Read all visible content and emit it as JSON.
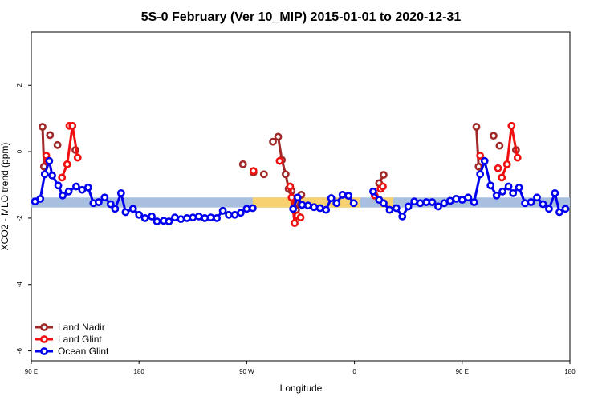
{
  "chart_data": {
    "type": "line",
    "title": "5S-0 February (Ver 10_MIP)   2015-01-01 to 2020-12-31",
    "xlabel": "Longitude",
    "ylabel": "XCO2 - MLO trend (ppm)",
    "xlim": [
      90,
      450
    ],
    "ylim": [
      -6.3,
      3.6
    ],
    "x_ticks": [
      {
        "value": 90,
        "label": "90 E"
      },
      {
        "value": 162,
        "label": "180"
      },
      {
        "value": 234,
        "label": "90 W"
      },
      {
        "value": 306,
        "label": "0"
      },
      {
        "value": 378,
        "label": "90 E"
      },
      {
        "value": 450,
        "label": "180"
      }
    ],
    "y_ticks": [
      {
        "value": 2,
        "label": "2"
      },
      {
        "value": 0,
        "label": "0"
      },
      {
        "value": -2,
        "label": "-2"
      },
      {
        "value": -4,
        "label": "-4"
      },
      {
        "value": -6,
        "label": "-6"
      }
    ],
    "band": {
      "y_range": [
        -1.68,
        -1.38
      ],
      "ocean_color": "#a8bfe0",
      "land_color": "#f7d070",
      "land_spans": [
        [
          238,
          310
        ],
        [
          323,
          332
        ]
      ]
    },
    "legend": {
      "position": "bottom-left"
    },
    "series": [
      {
        "name": "Land Nadir",
        "color": "#a02828",
        "segments": [
          [
            [
              97.5,
              0.75
            ],
            [
              98.5,
              -0.45
            ]
          ],
          [
            [
              107.5,
              0.2
            ]
          ],
          [
            [
              102.5,
              0.5
            ]
          ],
          [
            [
              119.5,
              0.05
            ]
          ],
          [
            [
              231.5,
              -0.38
            ]
          ],
          [
            [
              238.5,
              -0.63
            ]
          ],
          [
            [
              245.5,
              -0.68
            ]
          ],
          [
            [
              251.5,
              0.3
            ],
            [
              255,
              0.45
            ],
            [
              257.5,
              -0.25
            ],
            [
              260,
              -0.68
            ],
            [
              262,
              -1.12
            ],
            [
              264,
              -1.18
            ],
            [
              267,
              -1.75
            ],
            [
              270.5,
              -1.3
            ]
          ],
          [
            [
              322.5,
              -0.95
            ],
            [
              325.5,
              -0.7
            ]
          ],
          [
            [
              387.5,
              0.75
            ],
            [
              389,
              -0.45
            ]
          ],
          [
            [
              399,
              0.48
            ]
          ],
          [
            [
              403,
              0.18
            ]
          ],
          [
            [
              414,
              0.05
            ]
          ]
        ]
      },
      {
        "name": "Land Glint",
        "color": "#f01010",
        "segments": [
          [
            [
              100,
              -0.12
            ],
            [
              101,
              -0.28
            ]
          ],
          [
            [
              115.5,
              0.78
            ]
          ],
          [
            [
              110.5,
              -0.78
            ],
            [
              114,
              -0.38
            ],
            [
              117.5,
              0.78
            ],
            [
              121,
              -0.18
            ]
          ],
          [
            [
              238.5,
              -0.58
            ]
          ],
          [
            [
              256,
              -0.28
            ]
          ],
          [
            [
              263,
              -1.05
            ],
            [
              264,
              -1.38
            ],
            [
              266,
              -2.15
            ],
            [
              268,
              -1.92
            ],
            [
              270,
              -1.98
            ]
          ],
          [
            [
              319.5,
              -1.32
            ]
          ],
          [
            [
              323.5,
              -1.12
            ],
            [
              325,
              -1.05
            ]
          ],
          [
            [
              390,
              -0.12
            ]
          ],
          [
            [
              402,
              -0.5
            ]
          ],
          [
            [
              404.5,
              -0.78
            ],
            [
              408,
              -0.38
            ],
            [
              411,
              0.78
            ],
            [
              415,
              -0.18
            ]
          ]
        ]
      },
      {
        "name": "Ocean Glint",
        "color": "#0000ee",
        "segments": [
          [
            [
              92.5,
              -1.5
            ],
            [
              96,
              -1.42
            ],
            [
              99,
              -0.68
            ],
            [
              102,
              -0.28
            ],
            [
              104,
              -0.72
            ],
            [
              108,
              -1.02
            ],
            [
              111,
              -1.32
            ],
            [
              115,
              -1.2
            ],
            [
              120,
              -1.05
            ],
            [
              124,
              -1.15
            ],
            [
              128,
              -1.08
            ],
            [
              131.5,
              -1.55
            ],
            [
              135,
              -1.52
            ],
            [
              139,
              -1.38
            ],
            [
              143,
              -1.58
            ],
            [
              146,
              -1.72
            ],
            [
              150,
              -1.25
            ],
            [
              153,
              -1.82
            ],
            [
              158,
              -1.72
            ],
            [
              162,
              -1.9
            ],
            [
              166,
              -2.0
            ],
            [
              170.5,
              -1.95
            ],
            [
              174,
              -2.1
            ],
            [
              178.5,
              -2.08
            ],
            [
              182,
              -2.1
            ],
            [
              186,
              -1.98
            ],
            [
              190,
              -2.03
            ],
            [
              194,
              -2.0
            ],
            [
              198,
              -1.98
            ],
            [
              202,
              -1.95
            ],
            [
              206,
              -2.0
            ],
            [
              210,
              -1.98
            ],
            [
              214,
              -2.0
            ],
            [
              218,
              -1.78
            ],
            [
              222,
              -1.9
            ],
            [
              226,
              -1.9
            ],
            [
              230,
              -1.84
            ],
            [
              234,
              -1.72
            ],
            [
              238,
              -1.7
            ]
          ],
          [
            [
              265,
              -1.72
            ],
            [
              268,
              -1.38
            ],
            [
              271,
              -1.6
            ],
            [
              275,
              -1.62
            ],
            [
              279,
              -1.67
            ],
            [
              283,
              -1.7
            ],
            [
              287,
              -1.75
            ],
            [
              290.5,
              -1.4
            ],
            [
              294,
              -1.55
            ],
            [
              298,
              -1.3
            ],
            [
              302,
              -1.33
            ],
            [
              305.5,
              -1.55
            ]
          ],
          [
            [
              318.5,
              -1.2
            ],
            [
              322.5,
              -1.45
            ],
            [
              325.5,
              -1.55
            ],
            [
              329.5,
              -1.75
            ],
            [
              334,
              -1.7
            ],
            [
              338,
              -1.95
            ],
            [
              342,
              -1.65
            ],
            [
              346,
              -1.5
            ],
            [
              350,
              -1.55
            ],
            [
              354,
              -1.52
            ],
            [
              358,
              -1.52
            ],
            [
              362,
              -1.65
            ],
            [
              366,
              -1.55
            ],
            [
              370,
              -1.48
            ],
            [
              374,
              -1.42
            ],
            [
              378,
              -1.45
            ],
            [
              382,
              -1.38
            ],
            [
              386,
              -1.52
            ],
            [
              390,
              -0.68
            ],
            [
              393,
              -0.28
            ],
            [
              397,
              -1.02
            ],
            [
              401,
              -1.32
            ],
            [
              405,
              -1.2
            ],
            [
              409,
              -1.05
            ],
            [
              412,
              -1.25
            ],
            [
              416,
              -1.08
            ],
            [
              420,
              -1.55
            ],
            [
              424,
              -1.52
            ],
            [
              428,
              -1.38
            ],
            [
              432,
              -1.58
            ],
            [
              436,
              -1.72
            ],
            [
              440,
              -1.25
            ],
            [
              443,
              -1.82
            ],
            [
              447,
              -1.72
            ]
          ]
        ]
      }
    ]
  }
}
